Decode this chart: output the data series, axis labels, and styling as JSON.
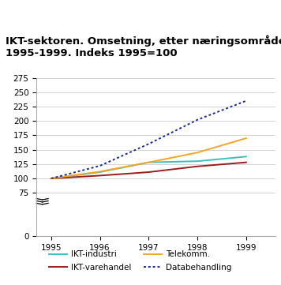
{
  "title": "IKT-sektoren. Omsetning, etter næringsområde.\n1995-1999. Indeks 1995=100",
  "title_color": "#000000",
  "title_fontsize": 9.5,
  "background_color": "#ffffff",
  "header_bar_color": "#5bc8c8",
  "years": [
    1995,
    1996,
    1997,
    1998,
    1999
  ],
  "series": {
    "IKT-industri": {
      "color": "#3dbfbf",
      "values": [
        100,
        111,
        128,
        130,
        138
      ],
      "linestyle": "solid"
    },
    "IKT-varehandel": {
      "color": "#9b1c1c",
      "values": [
        100,
        105,
        111,
        121,
        128
      ],
      "linestyle": "solid"
    },
    "Telekomm.": {
      "color": "#f5a623",
      "values": [
        100,
        112,
        128,
        145,
        170
      ],
      "linestyle": "solid"
    },
    "Databehandling": {
      "color": "#1a2b8f",
      "values": [
        100,
        122,
        160,
        202,
        235
      ],
      "linestyle": "dotted"
    }
  },
  "ylim": [
    0,
    275
  ],
  "yticks": [
    0,
    75,
    100,
    125,
    150,
    175,
    200,
    225,
    250,
    275
  ],
  "xlim": [
    1994.7,
    1999.6
  ],
  "grid_color": "#cccccc",
  "axis_color": "#aaaaaa",
  "legend_fontsize": 7.5,
  "legend_order": [
    "IKT-industri",
    "IKT-varehandel",
    "Telekomm.",
    "Databehandling"
  ]
}
